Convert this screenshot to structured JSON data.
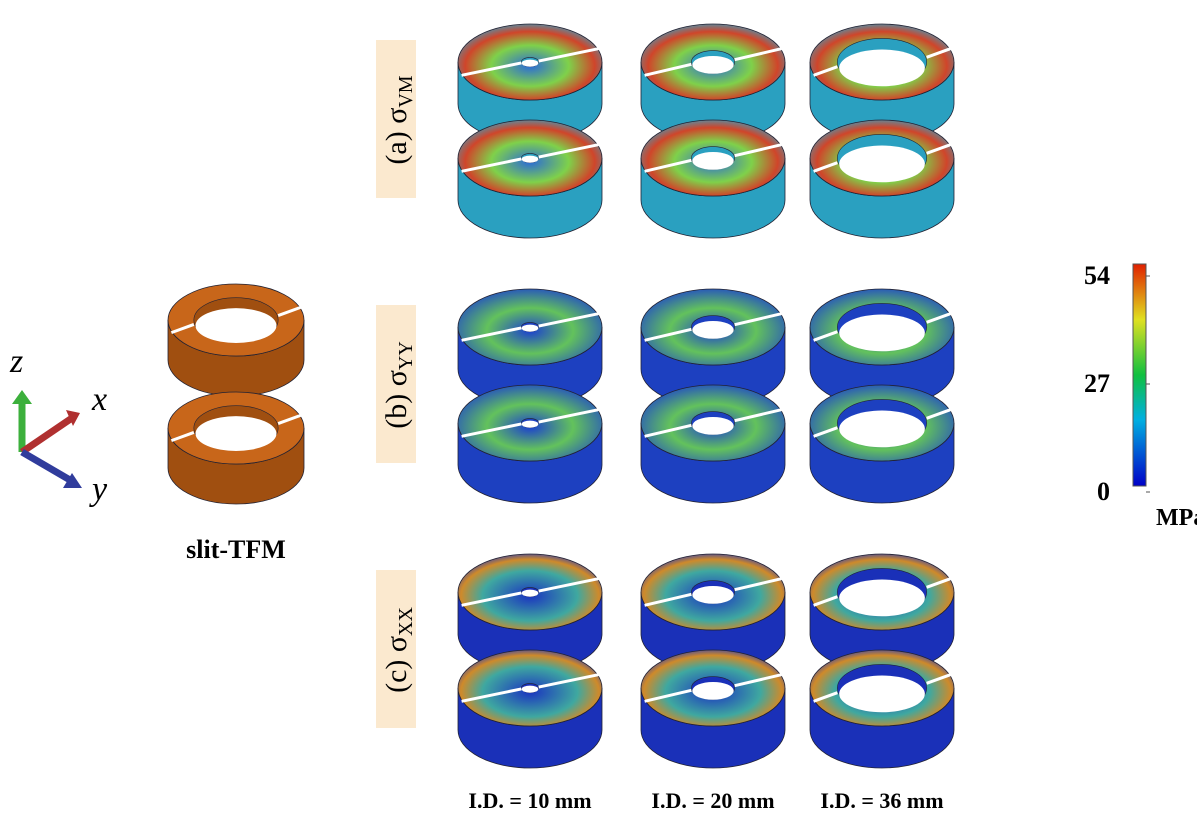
{
  "axes_triad": {
    "z": "z",
    "x": "x",
    "y": "y"
  },
  "model_label": "slit-TFM",
  "rows": [
    {
      "label": "(a) σ",
      "subscript": "VM"
    },
    {
      "label": "(b) σ",
      "subscript": "YY"
    },
    {
      "label": "(c) σ",
      "subscript": "XX"
    }
  ],
  "columns": [
    "I.D. = 10 mm",
    "I.D. = 20 mm",
    "I.D. = 36 mm"
  ],
  "colorbar": {
    "lim": [
      0,
      54
    ],
    "ticks": [
      54,
      27,
      0
    ],
    "unit": "MPa"
  }
}
